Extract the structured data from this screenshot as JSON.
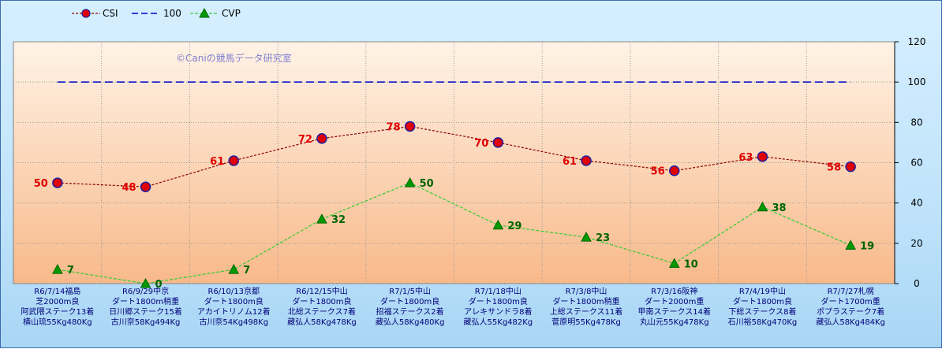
{
  "chart_data": {
    "type": "line",
    "watermark": "©Caniの競馬データ研究室",
    "categories": [
      [
        "R6/7/14福島",
        "芝2000m良",
        "阿武隈ステーク13着",
        "横山琉55Kg480Kg"
      ],
      [
        "R6/9/29中京",
        "ダート1800m稍重",
        "日川郷ステーク15着",
        "古川奈58Kg494Kg"
      ],
      [
        "R6/10/13京都",
        "ダート1800m良",
        "アカイトリノム12着",
        "古川奈54Kg498Kg"
      ],
      [
        "R6/12/15中山",
        "ダート1800m良",
        "北総ステークス7着",
        "藏弘人58Kg478Kg"
      ],
      [
        "R7/1/5中山",
        "ダート1800m良",
        "招福ステークス2着",
        "藏弘人58Kg480Kg"
      ],
      [
        "R7/1/18中山",
        "ダート1800m良",
        "アレキサンドラ8着",
        "藏弘人55Kg482Kg"
      ],
      [
        "R7/3/8中山",
        "ダート1800m稍重",
        "上総ステークス11着",
        "菅原明55Kg478Kg"
      ],
      [
        "R7/3/16阪神",
        "ダート2000m重",
        "甲南ステークス14着",
        "丸山元55Kg478Kg"
      ],
      [
        "R7/4/19中山",
        "ダート1800m良",
        "下総ステークス8着",
        "石川裕58Kg470Kg"
      ],
      [
        "R7/7/27札幌",
        "ダート1700m重",
        "ポプラステーク7着",
        "藏弘人58Kg484Kg"
      ]
    ],
    "series": [
      {
        "name": "CSI",
        "values": [
          50,
          48,
          61,
          72,
          78,
          70,
          61,
          56,
          63,
          58
        ],
        "color": "#8b0000",
        "marker_color": "#e00000"
      },
      {
        "name": "100",
        "values": [
          100,
          100,
          100,
          100,
          100,
          100,
          100,
          100,
          100,
          100
        ],
        "color": "#0000cc"
      },
      {
        "name": "CVP",
        "values": [
          7,
          0,
          7,
          32,
          50,
          29,
          23,
          10,
          38,
          19
        ],
        "color": "#33cc33",
        "marker_color": "#009900"
      }
    ],
    "ylim": [
      0,
      120
    ],
    "yticks": [
      0,
      20,
      40,
      60,
      80,
      100,
      120
    ],
    "grid": true,
    "legend": "top-left",
    "plot_background": [
      "#fff3e6",
      "#f8b98a"
    ]
  }
}
